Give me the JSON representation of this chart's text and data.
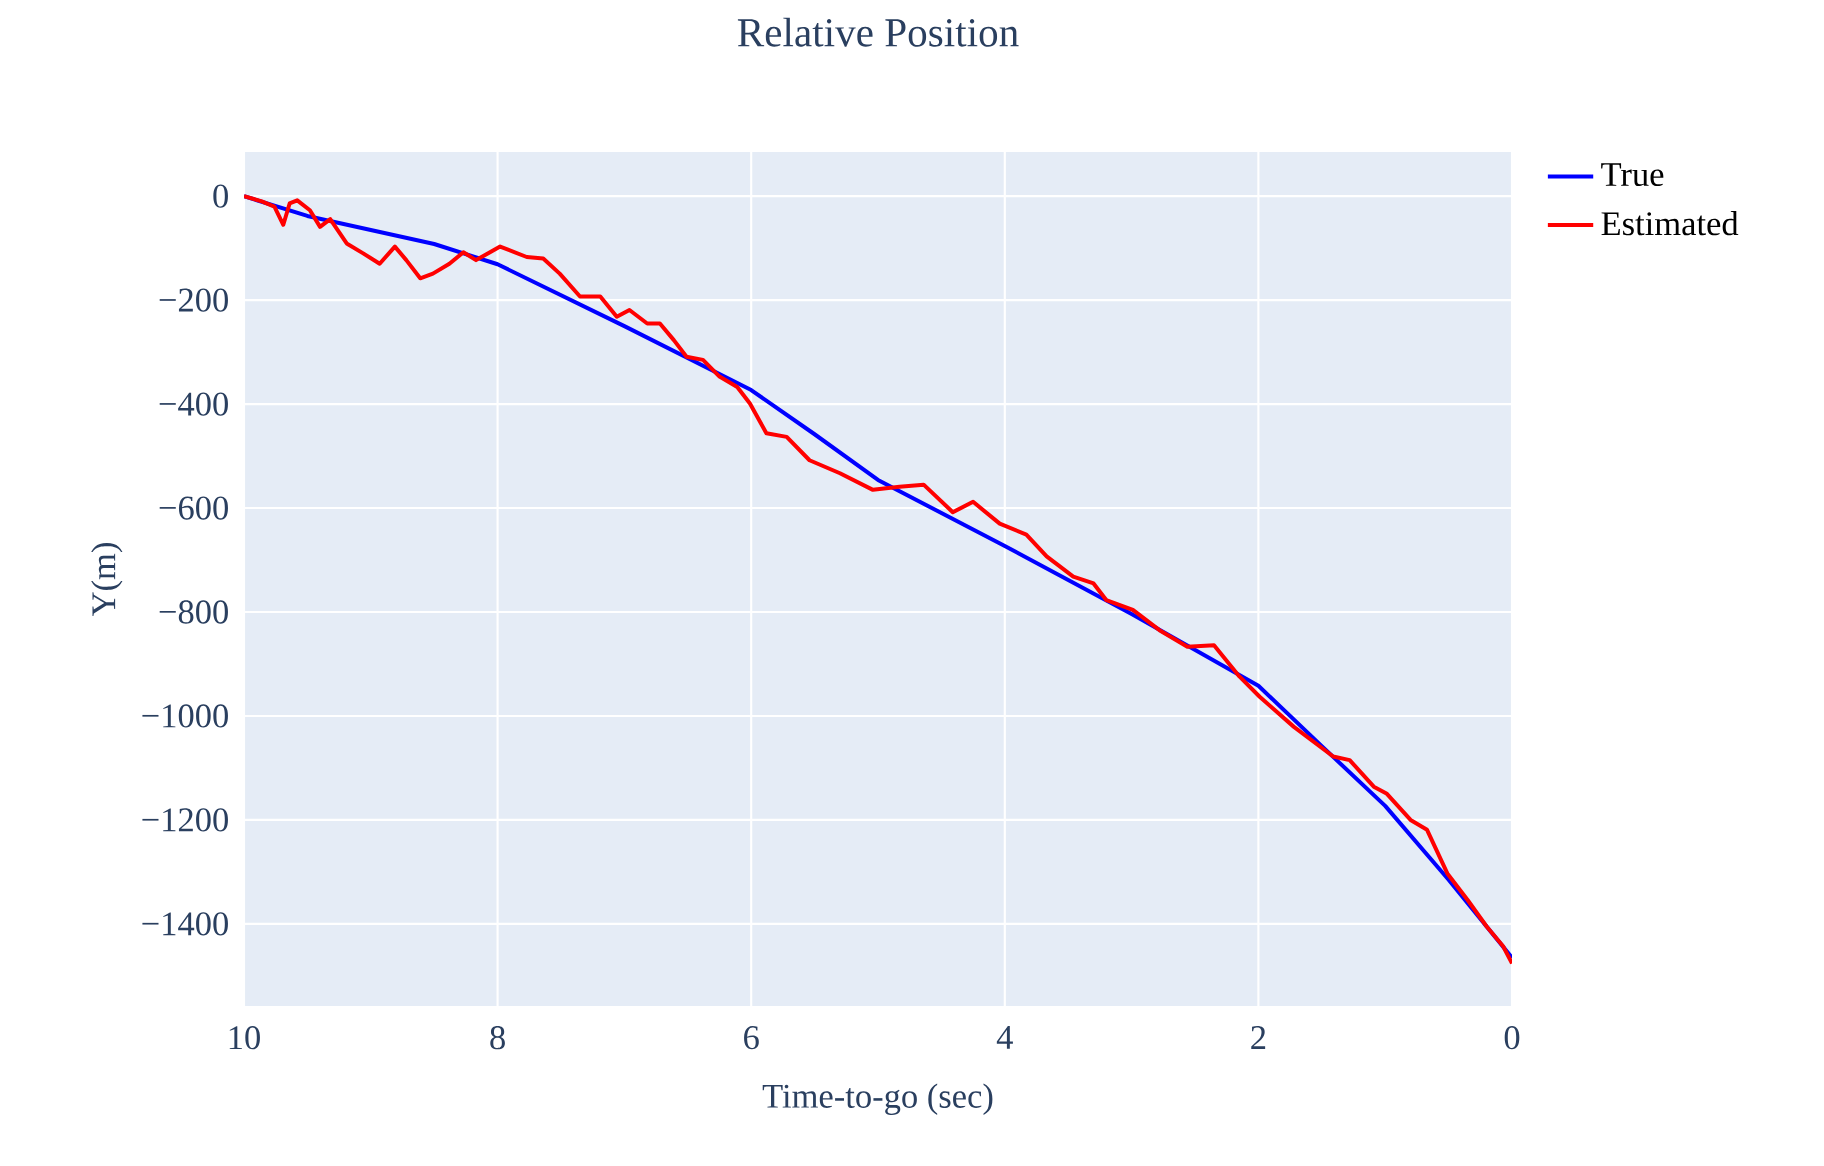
{
  "chart_data": {
    "type": "line",
    "title": "Relative Position",
    "xlabel": "Time-to-go (sec)",
    "ylabel": "Y(m)",
    "xlim": [
      10,
      0
    ],
    "ylim": [
      -1558,
      85
    ],
    "xticks": [
      10,
      8,
      6,
      4,
      2,
      0
    ],
    "yticks": [
      0,
      {
        "value": -200,
        "label": "−200"
      },
      {
        "value": -400,
        "label": "−400"
      },
      {
        "value": -600,
        "label": "−600"
      },
      {
        "value": -800,
        "label": "−800"
      },
      {
        "value": -1000,
        "label": "−1000"
      },
      {
        "value": -1200,
        "label": "−1200"
      },
      {
        "value": -1400,
        "label": "−1400"
      }
    ],
    "grid": true,
    "legend": "top right",
    "marker": "none",
    "line_style": "solid",
    "series": [
      {
        "name": "True",
        "color": "#0000ff",
        "x": [
          10,
          9.5,
          9,
          8.5,
          8,
          7,
          6,
          5.5,
          5,
          4,
          3,
          2,
          1.5,
          1,
          0.5,
          0
        ],
        "values": [
          0,
          -38,
          -65,
          -92,
          -131,
          -250,
          -373,
          -458,
          -546,
          -673,
          -804,
          -942,
          -1058,
          -1173,
          -1315,
          -1465
        ]
      },
      {
        "name": "Estimated",
        "color": "#ff0000",
        "x": [
          10,
          9.86,
          9.76,
          9.69,
          9.64,
          9.58,
          9.48,
          9.4,
          9.32,
          9.19,
          9.06,
          8.93,
          8.81,
          8.72,
          8.61,
          8.51,
          8.38,
          8.27,
          8.17,
          7.98,
          7.77,
          7.64,
          7.51,
          7.35,
          7.19,
          7.06,
          6.96,
          6.82,
          6.72,
          6.61,
          6.51,
          6.38,
          6.25,
          6.11,
          6.01,
          5.88,
          5.72,
          5.54,
          5.3,
          5.04,
          4.83,
          4.64,
          4.41,
          4.25,
          4.04,
          3.83,
          3.67,
          3.46,
          3.3,
          3.2,
          2.99,
          2.78,
          2.56,
          2.35,
          2.15,
          1.99,
          1.72,
          1.41,
          1.28,
          1.09,
          0.99,
          0.8,
          0.67,
          0.51,
          0.35,
          0.2,
          0.07,
          0
        ],
        "values": [
          0,
          -10,
          -20,
          -55,
          -14,
          -8,
          -27,
          -59,
          -44,
          -91,
          -110,
          -130,
          -97,
          -123,
          -158,
          -149,
          -130,
          -108,
          -123,
          -97,
          -117,
          -120,
          -149,
          -193,
          -193,
          -232,
          -219,
          -245,
          -245,
          -277,
          -309,
          -315,
          -347,
          -367,
          -399,
          -456,
          -463,
          -508,
          -533,
          -565,
          -559,
          -555,
          -608,
          -588,
          -630,
          -651,
          -693,
          -732,
          -745,
          -777,
          -796,
          -835,
          -867,
          -864,
          -924,
          -963,
          -1021,
          -1078,
          -1085,
          -1136,
          -1149,
          -1200,
          -1219,
          -1303,
          -1354,
          -1405,
          -1443,
          -1476
        ]
      }
    ]
  }
}
